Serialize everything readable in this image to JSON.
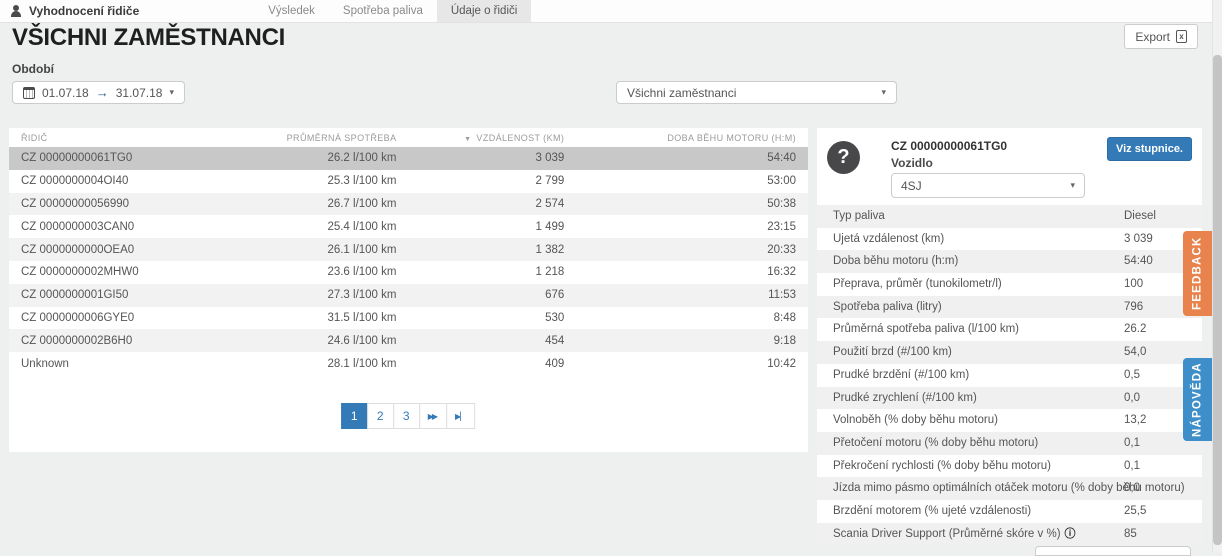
{
  "app": {
    "brand": "Vyhodnocení řidiče"
  },
  "nav": {
    "tabs": [
      {
        "label": "Výsledek",
        "active": false
      },
      {
        "label": "Spotřeba paliva",
        "active": false
      },
      {
        "label": "Údaje o řidiči",
        "active": true
      }
    ]
  },
  "page": {
    "title": "VŠICHNI ZAMĚSTNANCI",
    "export_label": "Export",
    "period_label": "Období",
    "date_from": "01.07.18",
    "date_to": "31.07.18",
    "employee_filter_value": "Všichni zaměstnanci"
  },
  "icons": {
    "sort_desc": "▼",
    "caret_down": "▾",
    "date_arrow": "→",
    "xls_glyph": "x",
    "avatar_glyph": "?",
    "fast_forward": "▶▶",
    "last_page": "▶▏"
  },
  "drivers_table": {
    "columns": [
      "ŘIDIČ",
      "PRŮMĚRNÁ SPOTŘEBA",
      "VZDÁLENOST (KM)",
      "DOBA BĚHU MOTORU (H:M)"
    ],
    "sorted_by": "VZDÁLENOST (KM)",
    "rows": [
      {
        "driver": "CZ 00000000061TG0",
        "consumption": "26.2 l/100 km",
        "distance": "3 039",
        "engine_time": "54:40",
        "selected": true
      },
      {
        "driver": "CZ 0000000004OI40",
        "consumption": "25.3 l/100 km",
        "distance": "2 799",
        "engine_time": "53:00"
      },
      {
        "driver": "CZ 00000000056990",
        "consumption": "26.7 l/100 km",
        "distance": "2 574",
        "engine_time": "50:38"
      },
      {
        "driver": "CZ 0000000003CAN0",
        "consumption": "25.4 l/100 km",
        "distance": "1 499",
        "engine_time": "23:15"
      },
      {
        "driver": "CZ 0000000000OEA0",
        "consumption": "26.1 l/100 km",
        "distance": "1 382",
        "engine_time": "20:33"
      },
      {
        "driver": "CZ 0000000002MHW0",
        "consumption": "23.6 l/100 km",
        "distance": "1 218",
        "engine_time": "16:32"
      },
      {
        "driver": "CZ 0000000001GI50",
        "consumption": "27.3 l/100 km",
        "distance": "676",
        "engine_time": "11:53"
      },
      {
        "driver": "CZ 0000000006GYE0",
        "consumption": "31.5 l/100 km",
        "distance": "530",
        "engine_time": "8:48"
      },
      {
        "driver": "CZ 0000000002B6H0",
        "consumption": "24.6 l/100 km",
        "distance": "454",
        "engine_time": "9:18"
      },
      {
        "driver": "Unknown",
        "consumption": "28.1 l/100 km",
        "distance": "409",
        "engine_time": "10:42"
      }
    ]
  },
  "pagination": {
    "pages": [
      {
        "label": "1",
        "active": true
      },
      {
        "label": "2"
      },
      {
        "label": "3"
      }
    ]
  },
  "driver_detail": {
    "id": "CZ 00000000061TG0",
    "vehicle_label": "Vozidlo",
    "vehicle_value": "4SJ",
    "scale_button": "Viz stupnice.",
    "rows": [
      {
        "label": "Typ paliva",
        "value": "Diesel"
      },
      {
        "label": "Ujetá vzdálenost (km)",
        "value": "3 039"
      },
      {
        "label": "Doba běhu motoru (h:m)",
        "value": "54:40"
      },
      {
        "label": "Přeprava, průměr (tunokilometr/l)",
        "value": "100"
      },
      {
        "label": "Spotřeba paliva (litry)",
        "value": "796"
      },
      {
        "label": "Průměrná spotřeba paliva (l/100 km)",
        "value": "26.2"
      },
      {
        "label": "Použití brzd (#/100 km)",
        "value": "54,0"
      },
      {
        "label": "Prudké brzdění (#/100 km)",
        "value": "0,5"
      },
      {
        "label": "Prudké zrychlení (#/100 km)",
        "value": "0,0"
      },
      {
        "label": "Volnoběh (% doby běhu motoru)",
        "value": "13,2"
      },
      {
        "label": "Přetočení motoru (% doby běhu motoru)",
        "value": "0,1"
      },
      {
        "label": "Překročení rychlosti (% doby běhu motoru)",
        "value": "0,1"
      },
      {
        "label": "Jízda mimo pásmo optimálních otáček motoru (% doby běhu motoru)",
        "value": "0,0"
      },
      {
        "label": "Brzdění motorem (% ujeté vzdálenosti)",
        "value": "25,5"
      },
      {
        "label": "Scania Driver Support (Průměrné skóre v %)",
        "value": "85",
        "info": "ⓘ"
      }
    ]
  },
  "side_tabs": {
    "feedback": "FEEDBACK",
    "help": "NÁPOVĚDA"
  },
  "colors": {
    "primary_blue": "#337ab7",
    "feedback_orange": "#e8834d",
    "help_blue": "#3d8ec9",
    "selected_row": "#c8c8c8",
    "stripe_row": "#f2f2f2"
  }
}
